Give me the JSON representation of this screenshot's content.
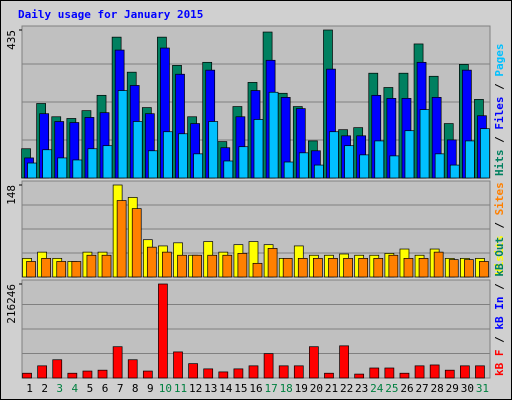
{
  "title": "Daily usage for January 2015",
  "categories": [
    "1",
    "2",
    "3",
    "4",
    "5",
    "6",
    "7",
    "8",
    "9",
    "10",
    "11",
    "12",
    "13",
    "14",
    "15",
    "16",
    "17",
    "18",
    "19",
    "20",
    "21",
    "22",
    "23",
    "24",
    "25",
    "26",
    "27",
    "28",
    "29",
    "30",
    "31"
  ],
  "category_colors": [
    "#000000",
    "#000000",
    "#008040",
    "#008040",
    "#000000",
    "#000000",
    "#000000",
    "#000000",
    "#000000",
    "#008040",
    "#008040",
    "#000000",
    "#000000",
    "#000000",
    "#000000",
    "#000000",
    "#008040",
    "#008040",
    "#000000",
    "#000000",
    "#000000",
    "#000000",
    "#000000",
    "#008040",
    "#008040",
    "#000000",
    "#000000",
    "#000000",
    "#000000",
    "#000000",
    "#008040"
  ],
  "chart_data": [
    {
      "type": "bar",
      "ylim": [
        0,
        435
      ],
      "yticks": [
        435
      ],
      "series": [
        {
          "name": "Hits",
          "color": "#008060",
          "values": [
            86,
            219,
            180,
            175,
            198,
            243,
            414,
            311,
            207,
            414,
            331,
            180,
            340,
            107,
            210,
            281,
            429,
            249,
            210,
            109,
            435,
            142,
            148,
            308,
            266,
            308,
            394,
            299,
            160,
            334,
            231
          ]
        },
        {
          "name": "Files",
          "color": "#0000ff",
          "values": [
            59,
            189,
            166,
            163,
            178,
            192,
            376,
            272,
            189,
            382,
            305,
            160,
            317,
            89,
            180,
            257,
            346,
            237,
            204,
            80,
            320,
            124,
            124,
            243,
            234,
            234,
            340,
            237,
            112,
            317,
            183
          ]
        },
        {
          "name": "Pages",
          "color": "#00c0ff",
          "values": [
            44,
            83,
            59,
            53,
            86,
            95,
            257,
            166,
            80,
            136,
            130,
            71,
            166,
            50,
            92,
            172,
            252,
            47,
            74,
            38,
            136,
            95,
            68,
            109,
            65,
            139,
            201,
            71,
            38,
            109,
            145
          ]
        }
      ],
      "extra_legend": []
    },
    {
      "type": "bar",
      "ylim": [
        0,
        148
      ],
      "yticks": [
        148
      ],
      "series": [
        {
          "name": "Visits",
          "color": "#ffff00",
          "values": [
            30,
            40,
            30,
            25,
            40,
            40,
            148,
            128,
            60,
            50,
            55,
            35,
            57,
            40,
            52,
            57,
            52,
            30,
            50,
            35,
            35,
            37,
            35,
            35,
            38,
            45,
            35,
            45,
            30,
            30,
            30
          ]
        },
        {
          "name": "Sites",
          "color": "#ff8000",
          "values": [
            25,
            30,
            25,
            25,
            35,
            35,
            123,
            110,
            48,
            40,
            35,
            35,
            35,
            35,
            38,
            22,
            46,
            30,
            30,
            30,
            30,
            30,
            30,
            30,
            35,
            30,
            30,
            40,
            28,
            28,
            25
          ]
        }
      ],
      "extra_legend": []
    },
    {
      "type": "bar",
      "ylim": [
        0,
        216246
      ],
      "yticks": [
        216246
      ],
      "series": [
        {
          "name": "kB F",
          "color": "#ff0000",
          "values": [
            11000,
            28000,
            42000,
            11000,
            16000,
            18000,
            72000,
            42000,
            16000,
            216246,
            60000,
            33000,
            21000,
            14000,
            21000,
            28000,
            56000,
            28000,
            28000,
            72000,
            11000,
            74000,
            9000,
            23000,
            23000,
            11000,
            28000,
            30000,
            18000,
            28000,
            28000
          ]
        }
      ],
      "extra_legend": [
        {
          "name": "kB In",
          "color": "#0000ff"
        },
        {
          "name": "kB Out",
          "color": "#008060"
        }
      ]
    }
  ]
}
